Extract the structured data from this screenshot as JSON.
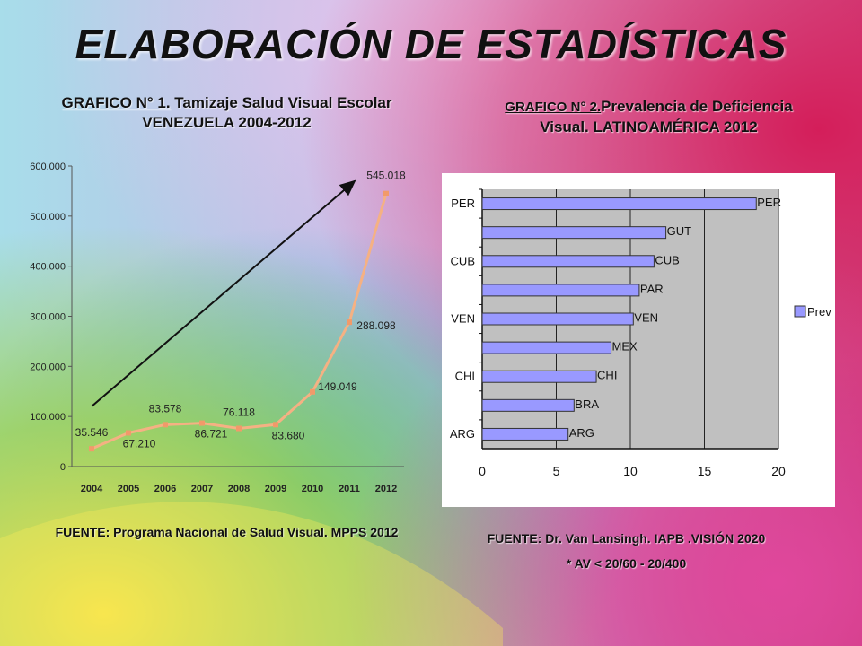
{
  "slide": {
    "title": "ELABORACIÓN DE ESTADÍSTICAS",
    "left_caption": {
      "prefix": "GRAFICO N° 1.",
      "text": " Tamizaje Salud Visual Escolar",
      "line2": "VENEZUELA 2004-2012"
    },
    "right_caption": {
      "prefix": "GRAFICO N° 2.",
      "text": "Prevalencia de Deficiencia",
      "line2": "Visual. LATINOAMÉRICA  2012"
    },
    "left_source": "FUENTE: Programa Nacional de Salud Visual. MPPS 2012",
    "right_source": "FUENTE:  Dr. Van Lansingh. IAPB .VISIÓN 2020",
    "right_note": "*  AV < 20/60 - 20/400"
  },
  "chart_data": [
    {
      "type": "line",
      "title": "GRAFICO N° 1. Tamizaje Salud Visual Escolar VENEZUELA 2004-2012",
      "x": [
        "2004",
        "2005",
        "2006",
        "2007",
        "2008",
        "2009",
        "2010",
        "2011",
        "2012"
      ],
      "series": [
        {
          "values": [
            35546,
            67210,
            83578,
            86721,
            76118,
            83680,
            149049,
            288098,
            545018
          ],
          "labels": [
            "35.546",
            "67.210",
            "83.578",
            "86.721",
            "76.118",
            "83.680",
            "149.049",
            "288.098",
            "545.018"
          ]
        }
      ],
      "y_ticks": [
        "0",
        "100.000",
        "200.000",
        "300.000",
        "400.000",
        "500.000",
        "600.000"
      ],
      "ylim": [
        0,
        600000
      ],
      "color": "#f5b183",
      "annotation": "trend arrow from 2004 to 2012",
      "grid": false
    },
    {
      "type": "bar",
      "orientation": "horizontal",
      "title": "GRAFICO N° 2. Prevalencia de Deficiencia Visual. LATINOAMÉRICA 2012",
      "categories": [
        "PER",
        "GUT",
        "CUB",
        "PAR",
        "VEN",
        "MEX",
        "CHI",
        "BRA",
        "ARG"
      ],
      "y_tick_labels": [
        "PER",
        "CUB",
        "VEN",
        "CHI",
        "ARG"
      ],
      "series": [
        {
          "name": "Prev",
          "values": [
            18.5,
            12.4,
            11.6,
            10.6,
            10.2,
            8.7,
            7.7,
            6.2,
            5.8
          ]
        }
      ],
      "x_ticks": [
        "0",
        "5",
        "10",
        "15",
        "20"
      ],
      "xlim": [
        0,
        20
      ],
      "legend": "right",
      "color": "#9999ff",
      "grid": true
    }
  ]
}
